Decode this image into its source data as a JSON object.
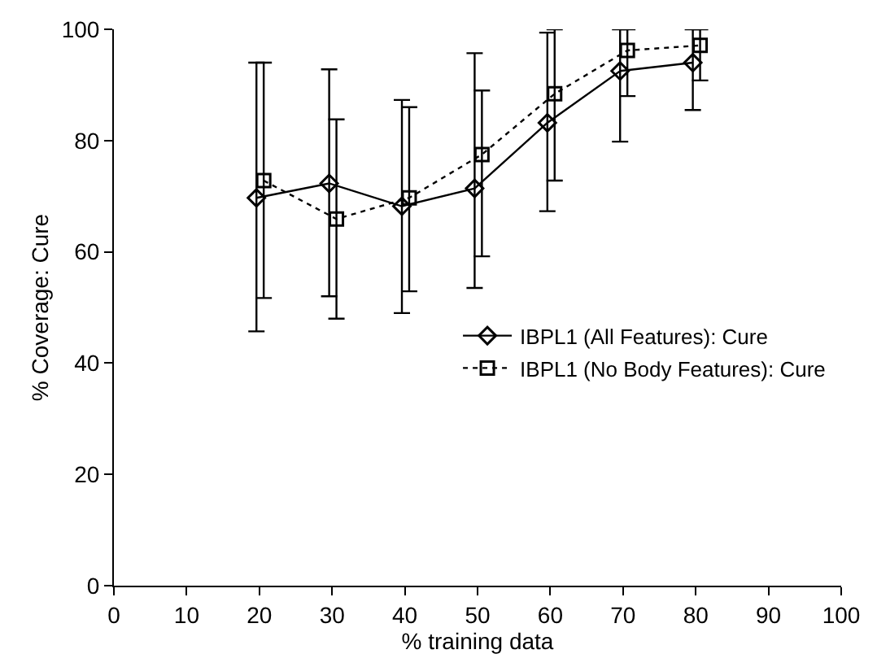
{
  "chart_data": {
    "type": "line",
    "xlabel": "% training data",
    "ylabel": "% Coverage: Cure",
    "xlim": [
      0,
      100
    ],
    "xticks": [
      0,
      10,
      20,
      30,
      40,
      50,
      60,
      70,
      80,
      90,
      100
    ],
    "ylim": [
      0,
      100
    ],
    "yticks": [
      0,
      20,
      40,
      60,
      80,
      100
    ],
    "grid": false,
    "legend": "right",
    "series": [
      {
        "name": "IBPL1 (All Features): Cure",
        "color": "#000000",
        "x": [
          19.6,
          29.6,
          39.6,
          49.6,
          59.6,
          69.6,
          79.6
        ],
        "marker": "diamond",
        "line_style": "solid",
        "values": [
          69.7,
          72.3,
          68.2,
          71.4,
          83.2,
          92.5,
          94.0
        ],
        "errors": [
          [
            45.7,
            94
          ],
          [
            52,
            92.8
          ],
          [
            49,
            87.3
          ],
          [
            53.5,
            95.7
          ],
          [
            67.3,
            99.4
          ],
          [
            79.8,
            100
          ],
          [
            85.5,
            100
          ]
        ]
      },
      {
        "name": "IBPL1 (No Body Features): Cure",
        "color": "#000000",
        "x": [
          20.6,
          30.6,
          40.6,
          50.6,
          60.6,
          70.6,
          80.6
        ],
        "marker": "square",
        "line_style": "dotted",
        "values": [
          72.8,
          65.9,
          69.7,
          77.5,
          88.4,
          96.2,
          97.1
        ],
        "errors": [
          [
            51.7,
            94
          ],
          [
            48,
            83.8
          ],
          [
            52.9,
            86
          ],
          [
            59.2,
            89
          ],
          [
            72.8,
            100
          ],
          [
            88,
            100
          ],
          [
            90.8,
            100
          ]
        ]
      }
    ]
  }
}
